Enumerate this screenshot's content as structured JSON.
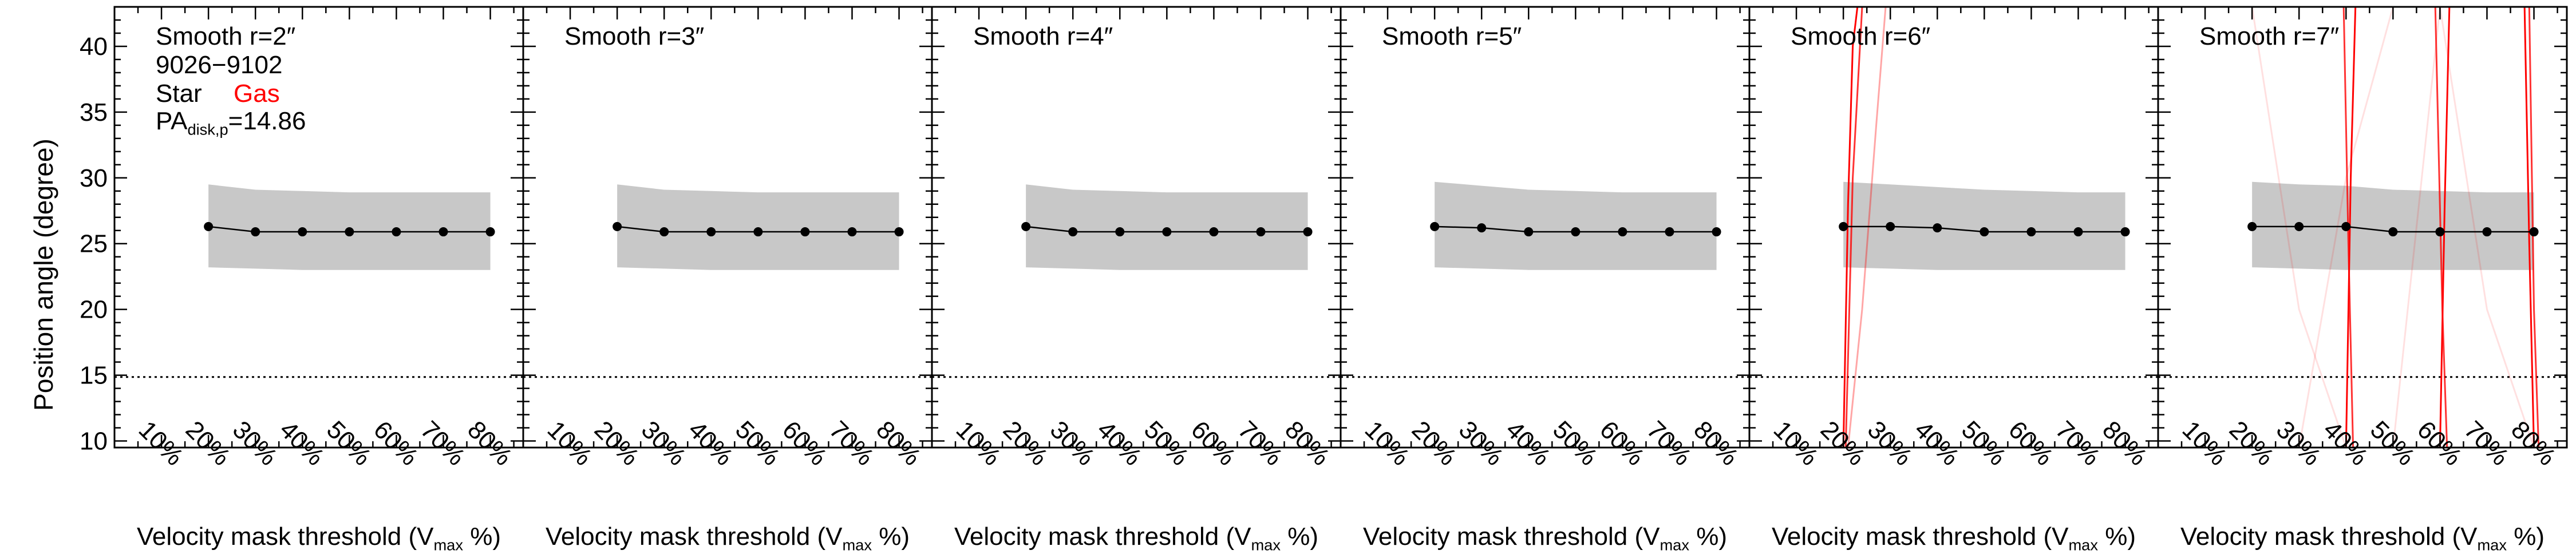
{
  "figure": {
    "y_axis_label": "Position angle (degree)",
    "x_axis_label_main": "Velocity mask threshold (V",
    "x_axis_label_sub": "max",
    "x_axis_label_tail": " %)"
  },
  "chart_data": {
    "type": "line",
    "x_ticks": [
      "10%",
      "20%",
      "30%",
      "40%",
      "50%",
      "60%",
      "70%",
      "80%"
    ],
    "x_tick_values": [
      10,
      20,
      30,
      40,
      50,
      60,
      70,
      80
    ],
    "xlim": [
      0,
      87
    ],
    "ylim": [
      9.5,
      43
    ],
    "y_ticks": [
      10,
      15,
      20,
      25,
      30,
      35,
      40
    ],
    "reference_line": {
      "value": 14.86,
      "style": "dotted"
    },
    "annotation": {
      "galaxy_id": "9026−9102",
      "star_label": "Star",
      "gas_label": "Gas",
      "pa_prefix": "PA",
      "pa_sub": "disk,p",
      "pa_value": "=14.86"
    },
    "colors": {
      "star": "#000000",
      "gas": "#ff0000",
      "band": "#c8c8c8"
    },
    "panels": [
      {
        "title": "Smooth r=2″",
        "star_x": [
          20,
          30,
          40,
          50,
          60,
          70,
          80
        ],
        "star_y": [
          26.3,
          25.9,
          25.9,
          25.9,
          25.9,
          25.9,
          25.9
        ],
        "band_lower": [
          23.2,
          23.1,
          23.0,
          23.0,
          23.0,
          23.0,
          23.0
        ],
        "band_upper": [
          29.5,
          29.1,
          29.0,
          28.9,
          28.9,
          28.9,
          28.9
        ],
        "gas_series": []
      },
      {
        "title": "Smooth r=3″",
        "star_x": [
          20,
          30,
          40,
          50,
          60,
          70,
          80
        ],
        "star_y": [
          26.3,
          25.9,
          25.9,
          25.9,
          25.9,
          25.9,
          25.9
        ],
        "band_lower": [
          23.2,
          23.1,
          23.0,
          23.0,
          23.0,
          23.0,
          23.0
        ],
        "band_upper": [
          29.5,
          29.1,
          29.0,
          28.9,
          28.9,
          28.9,
          28.9
        ],
        "gas_series": []
      },
      {
        "title": "Smooth r=4″",
        "star_x": [
          20,
          30,
          40,
          50,
          60,
          70,
          80
        ],
        "star_y": [
          26.3,
          25.9,
          25.9,
          25.9,
          25.9,
          25.9,
          25.9
        ],
        "band_lower": [
          23.2,
          23.1,
          23.0,
          23.0,
          23.0,
          23.0,
          23.0
        ],
        "band_upper": [
          29.5,
          29.1,
          29.0,
          28.9,
          28.9,
          28.9,
          28.9
        ],
        "gas_series": []
      },
      {
        "title": "Smooth r=5″",
        "star_x": [
          20,
          30,
          40,
          50,
          60,
          70,
          80
        ],
        "star_y": [
          26.3,
          26.2,
          25.9,
          25.9,
          25.9,
          25.9,
          25.9
        ],
        "band_lower": [
          23.2,
          23.1,
          23.0,
          23.0,
          23.0,
          23.0,
          23.0
        ],
        "band_upper": [
          29.7,
          29.4,
          29.1,
          29.0,
          28.9,
          28.9,
          28.9
        ],
        "gas_series": []
      },
      {
        "title": "Smooth r=6″",
        "star_x": [
          20,
          30,
          40,
          50,
          60,
          70,
          80
        ],
        "star_y": [
          26.3,
          26.3,
          26.2,
          25.9,
          25.9,
          25.9,
          25.9
        ],
        "band_lower": [
          23.2,
          23.1,
          23.0,
          23.0,
          23.0,
          23.0,
          23.0
        ],
        "band_upper": [
          29.7,
          29.5,
          29.3,
          29.1,
          29.0,
          28.9,
          28.9
        ],
        "gas_series": [
          {
            "x": [
              20,
              21,
              22,
              23
            ],
            "y": [
              9.5,
              28,
              40,
              43
            ],
            "opacity": 1.0
          },
          {
            "x": [
              20.5,
              22,
              24
            ],
            "y": [
              9.5,
              30,
              43
            ],
            "opacity": 0.8
          },
          {
            "x": [
              21,
              24,
              27,
              29
            ],
            "y": [
              9.5,
              20,
              34,
              43
            ],
            "opacity": 0.35
          }
        ]
      },
      {
        "title": "Smooth r=7″",
        "star_x": [
          20,
          30,
          40,
          50,
          60,
          70,
          80
        ],
        "star_y": [
          26.3,
          26.3,
          26.3,
          25.9,
          25.9,
          25.9,
          25.9
        ],
        "band_lower": [
          23.2,
          23.1,
          23.0,
          23.0,
          23.0,
          23.0,
          23.0
        ],
        "band_upper": [
          29.7,
          29.5,
          29.4,
          29.1,
          29.0,
          28.9,
          28.9
        ],
        "gas_series": [
          {
            "x": [
              40,
              41,
              42
            ],
            "y": [
              9.5,
              30,
              43
            ],
            "opacity": 1.0
          },
          {
            "x": [
              39.5,
              40.5,
              41.5
            ],
            "y": [
              43,
              25,
              9.5
            ],
            "opacity": 0.8
          },
          {
            "x": [
              60,
              61,
              62
            ],
            "y": [
              9.5,
              28,
              43
            ],
            "opacity": 1.0
          },
          {
            "x": [
              59,
              60.5,
              61.5
            ],
            "y": [
              43,
              20,
              9.5
            ],
            "opacity": 0.8
          },
          {
            "x": [
              78,
              79,
              80
            ],
            "y": [
              43,
              25,
              9.5
            ],
            "opacity": 1.0
          },
          {
            "x": [
              79,
              80,
              81
            ],
            "y": [
              43,
              20,
              9.5
            ],
            "opacity": 0.8
          },
          {
            "x": [
              20,
              30,
              40
            ],
            "y": [
              43,
              20,
              9.5
            ],
            "opacity": 0.12
          },
          {
            "x": [
              50,
              60,
              70,
              80
            ],
            "y": [
              9.5,
              43,
              20,
              9.5
            ],
            "opacity": 0.12
          },
          {
            "x": [
              30,
              40,
              50
            ],
            "y": [
              9.5,
              30,
              43
            ],
            "opacity": 0.12
          }
        ]
      }
    ]
  }
}
